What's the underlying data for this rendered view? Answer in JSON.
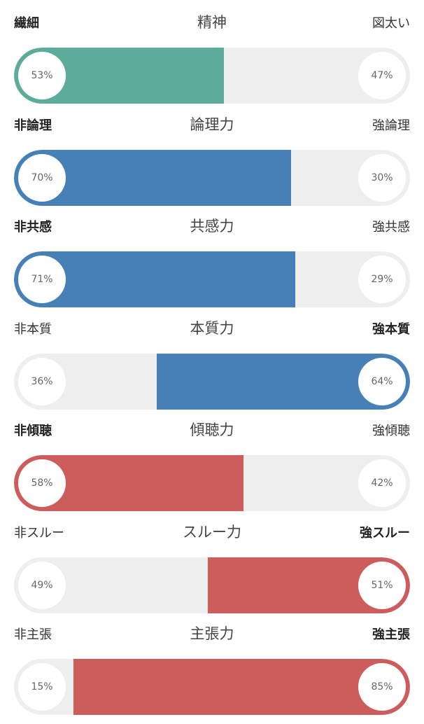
{
  "colors": {
    "teal": "#5dab9b",
    "blue": "#4680b6",
    "red": "#cd5d5d",
    "track": "#eeeeee"
  },
  "rows": [
    {
      "left_label": "繊細",
      "title": "精神",
      "right_label": "図太い",
      "left_pct": 53,
      "right_pct": 47,
      "left_text": "53%",
      "right_text": "47%",
      "dominant": "left",
      "color": "teal"
    },
    {
      "left_label": "非論理",
      "title": "論理力",
      "right_label": "強論理",
      "left_pct": 70,
      "right_pct": 30,
      "left_text": "70%",
      "right_text": "30%",
      "dominant": "left",
      "color": "blue"
    },
    {
      "left_label": "非共感",
      "title": "共感力",
      "right_label": "強共感",
      "left_pct": 71,
      "right_pct": 29,
      "left_text": "71%",
      "right_text": "29%",
      "dominant": "left",
      "color": "blue"
    },
    {
      "left_label": "非本質",
      "title": "本質力",
      "right_label": "強本質",
      "left_pct": 36,
      "right_pct": 64,
      "left_text": "36%",
      "right_text": "64%",
      "dominant": "right",
      "color": "blue"
    },
    {
      "left_label": "非傾聴",
      "title": "傾聴力",
      "right_label": "強傾聴",
      "left_pct": 58,
      "right_pct": 42,
      "left_text": "58%",
      "right_text": "42%",
      "dominant": "left",
      "color": "red"
    },
    {
      "left_label": "非スルー",
      "title": "スルー力",
      "right_label": "強スルー",
      "left_pct": 49,
      "right_pct": 51,
      "left_text": "49%",
      "right_text": "51%",
      "dominant": "right",
      "color": "red"
    },
    {
      "left_label": "非主張",
      "title": "主張力",
      "right_label": "強主張",
      "left_pct": 15,
      "right_pct": 85,
      "left_text": "15%",
      "right_text": "85%",
      "dominant": "right",
      "color": "red"
    }
  ]
}
